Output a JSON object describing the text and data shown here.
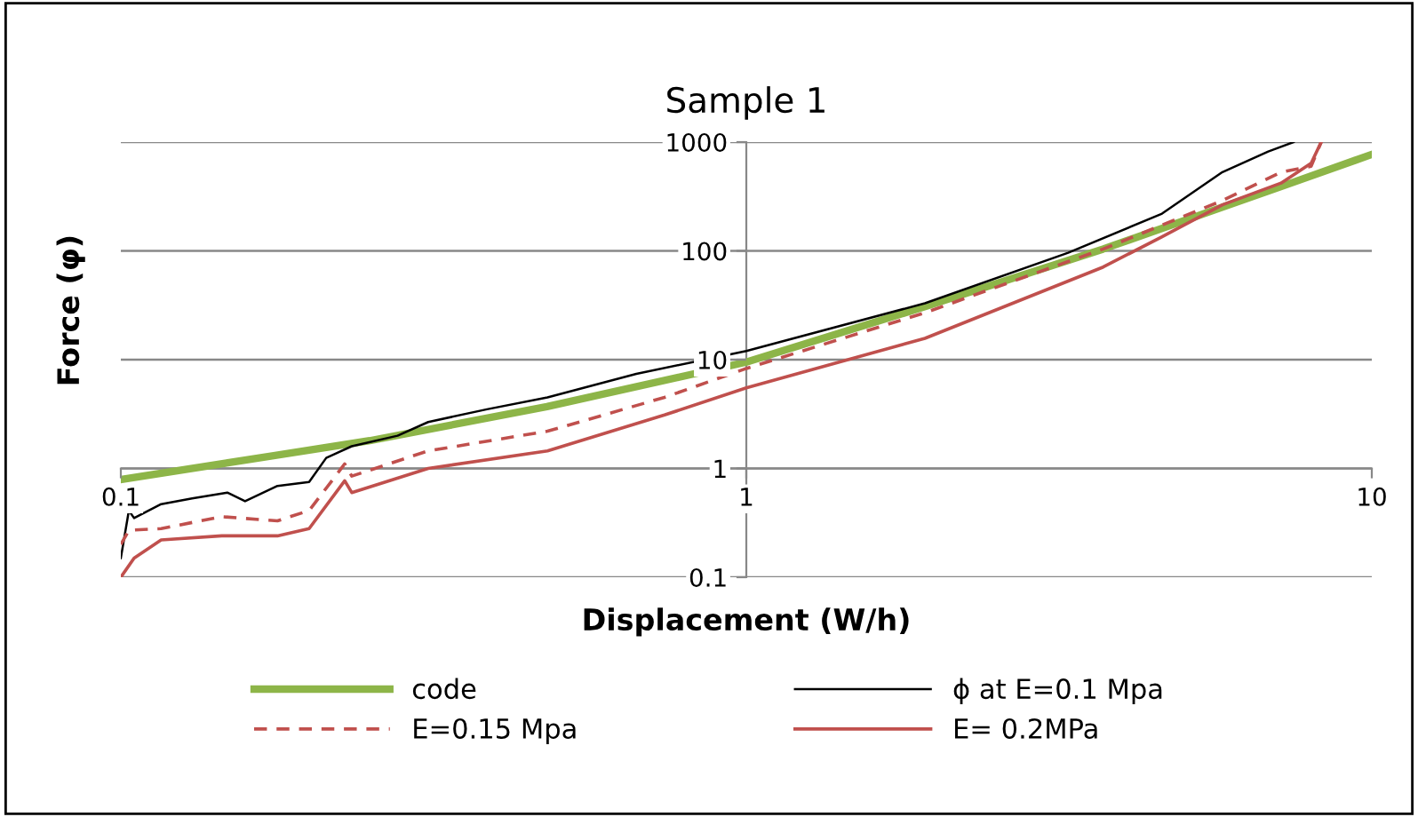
{
  "chart_data": {
    "type": "line",
    "title": "Sample 1",
    "xlabel": "Displacement (W/h)",
    "ylabel": "Force (φ)",
    "log": "xy",
    "xlim": [
      0.1,
      10
    ],
    "ylim": [
      0.1,
      1000
    ],
    "xticks": [
      0.1,
      1,
      10
    ],
    "yticks": [
      0.1,
      1,
      10,
      100,
      1000
    ],
    "grid": "y",
    "legend": "bottom",
    "marker": "none",
    "series": [
      {
        "name": "code",
        "color": "#8db548",
        "line_style": "solid",
        "x": [
          0.1,
          0.25,
          0.48,
          1,
          1.94,
          3.72,
          7.16,
          10
        ],
        "values": [
          0.79,
          1.8,
          3.7,
          9.5,
          31,
          104,
          390,
          770
        ]
      },
      {
        "name": "ϕ at E=0.1 Mpa",
        "color": "#000000",
        "line_style": "solid",
        "x": [
          0.1,
          0.103,
          0.105,
          0.116,
          0.13,
          0.148,
          0.158,
          0.178,
          0.2,
          0.213,
          0.234,
          0.277,
          0.31,
          0.385,
          0.481,
          0.667,
          1,
          1.93,
          3.27,
          4.62,
          5.77,
          6.83,
          7.5
        ],
        "values": [
          0.15,
          0.41,
          0.35,
          0.47,
          0.53,
          0.6,
          0.5,
          0.69,
          0.75,
          1.25,
          1.6,
          2.0,
          2.67,
          3.5,
          4.5,
          7.4,
          12,
          33,
          96,
          220,
          530,
          820,
          1000
        ]
      },
      {
        "name": "E=0.15 Mpa",
        "color": "#c0504d",
        "line_style": "dashed",
        "x": [
          0.1,
          0.103,
          0.116,
          0.145,
          0.178,
          0.2,
          0.228,
          0.234,
          0.31,
          0.481,
          0.74,
          1,
          1.93,
          3.72,
          5.77,
          7.16,
          8.0,
          8.3
        ],
        "values": [
          0.2,
          0.27,
          0.28,
          0.36,
          0.33,
          0.41,
          1.1,
          0.85,
          1.45,
          2.2,
          4.5,
          8.3,
          27,
          104,
          290,
          530,
          600,
          1000
        ]
      },
      {
        "name": "E= 0.2MPa",
        "color": "#c0504d",
        "line_style": "solid",
        "x": [
          0.1,
          0.105,
          0.116,
          0.145,
          0.178,
          0.2,
          0.228,
          0.234,
          0.31,
          0.481,
          0.74,
          1,
          1.93,
          3.72,
          4.62,
          5.77,
          7.16,
          8.0,
          8.3
        ],
        "values": [
          0.1,
          0.15,
          0.22,
          0.24,
          0.24,
          0.28,
          0.77,
          0.6,
          1.0,
          1.45,
          3.1,
          5.5,
          15.7,
          71,
          135,
          265,
          420,
          640,
          1000
        ]
      }
    ]
  }
}
